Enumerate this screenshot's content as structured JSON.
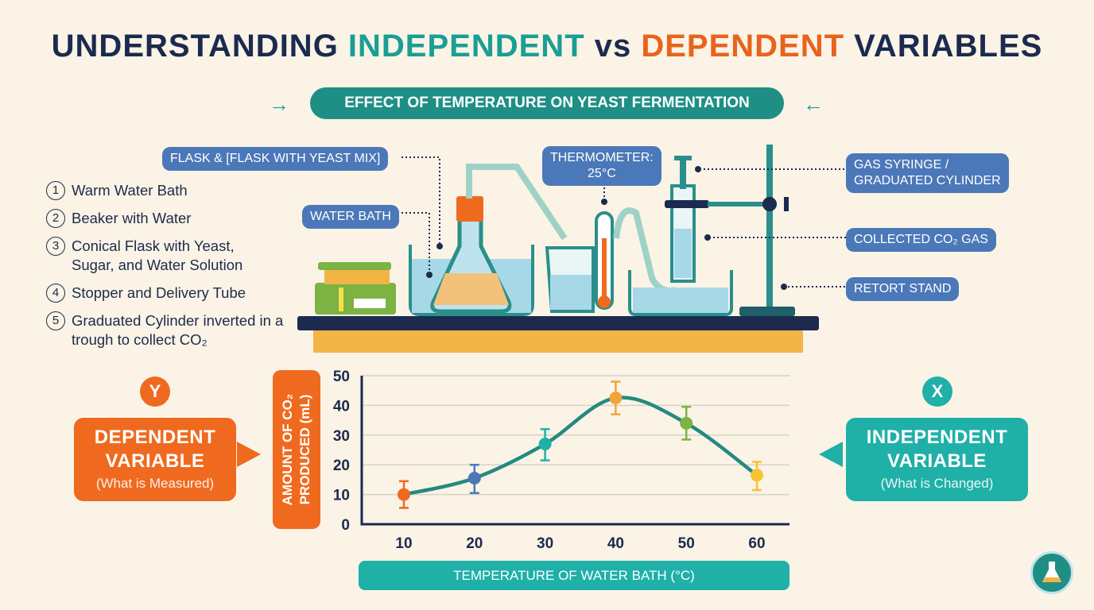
{
  "title": {
    "part1": "UNDERSTANDING ",
    "part2": "INDEPENDENT",
    "part3": " vs ",
    "part4": "DEPENDENT",
    "part5": " VARIABLES"
  },
  "subtitle": "EFFECT OF TEMPERATURE ON YEAST FERMENTATION",
  "labels": {
    "flask": "FLASK &  [FLASK WITH YEAST MIX]",
    "water_bath": "WATER BATH",
    "thermometer_line1": "THERMOMETER:",
    "thermometer_line2": "25°C",
    "gas_syringe_line1": "GAS SYRINGE /",
    "gas_syringe_line2": "GRADUATED CYLINDER",
    "collected_gas": "COLLECTED CO₂ GAS",
    "retort_stand": "RETORT STAND"
  },
  "steps": [
    {
      "n": "1",
      "text": "Warm Water Bath"
    },
    {
      "n": "2",
      "text": "Beaker with Water"
    },
    {
      "n": "3",
      "text": "Conical Flask with Yeast, Sugar, and Water Solution"
    },
    {
      "n": "4",
      "text": "Stopper and Delivery Tube"
    },
    {
      "n": "5",
      "text": "Graduated Cylinder inverted in a trough to collect CO₂"
    }
  ],
  "dependent": {
    "badge": "Y",
    "title_line1": "DEPENDENT",
    "title_line2": "VARIABLE",
    "desc": "(What is Measured)",
    "color": "#ef6a1f"
  },
  "independent": {
    "badge": "X",
    "title_line1": "INDEPENDENT",
    "title_line2": "VARIABLE",
    "desc": "(What is Changed)",
    "color": "#1fb0a8"
  },
  "chart_data": {
    "type": "line",
    "xlabel": "TEMPERATURE OF WATER BATH (°C)",
    "ylabel_line1": "AMOUNT OF CO₂",
    "ylabel_line2": "PRODUCED (mL)",
    "x": [
      10,
      20,
      30,
      40,
      50,
      60
    ],
    "y": [
      10,
      15.5,
      27,
      42.5,
      34,
      16.5
    ],
    "error_low": [
      5.5,
      10.5,
      21.5,
      37,
      28.5,
      11.5
    ],
    "error_high": [
      14.5,
      20,
      32,
      48,
      39.5,
      21
    ],
    "point_colors": [
      "#ef6a1f",
      "#4b78b8",
      "#1fb0a8",
      "#f2a33a",
      "#7cb342",
      "#f5c431"
    ],
    "line_color": "#238a80",
    "yticks": [
      0,
      10,
      20,
      30,
      40,
      50
    ],
    "ylim": [
      0,
      50
    ],
    "xlim": [
      5,
      65
    ],
    "grid": true
  }
}
